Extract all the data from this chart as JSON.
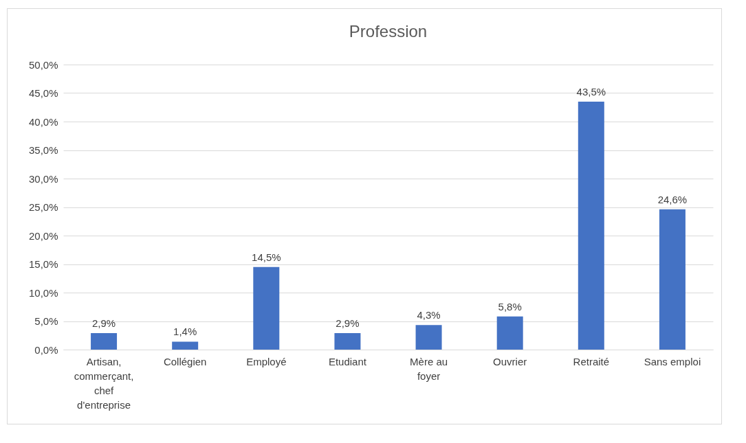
{
  "chart_data": {
    "type": "bar",
    "title": "Profession",
    "categories": [
      "Artisan, commerçant, chef d'entreprise",
      "Collégien",
      "Employé",
      "Etudiant",
      "Mère au foyer",
      "Ouvrier",
      "Retraité",
      "Sans emploi"
    ],
    "values": [
      2.9,
      1.4,
      14.5,
      2.9,
      4.3,
      5.8,
      43.5,
      24.6
    ],
    "value_labels": [
      "2,9%",
      "1,4%",
      "14,5%",
      "2,9%",
      "4,3%",
      "5,8%",
      "43,5%",
      "24,6%"
    ],
    "color": "#4472c4",
    "ylim": [
      0,
      50
    ],
    "yticks": [
      {
        "value": 0,
        "label": "0,0%"
      },
      {
        "value": 5,
        "label": "5,0%"
      },
      {
        "value": 10,
        "label": "10,0%"
      },
      {
        "value": 15,
        "label": "15,0%"
      },
      {
        "value": 20,
        "label": "20,0%"
      },
      {
        "value": 25,
        "label": "25,0%"
      },
      {
        "value": 30,
        "label": "30,0%"
      },
      {
        "value": 35,
        "label": "35,0%"
      },
      {
        "value": 40,
        "label": "40,0%"
      },
      {
        "value": 45,
        "label": "45,0%"
      },
      {
        "value": 50,
        "label": "50,0%"
      }
    ],
    "grid": "y"
  }
}
